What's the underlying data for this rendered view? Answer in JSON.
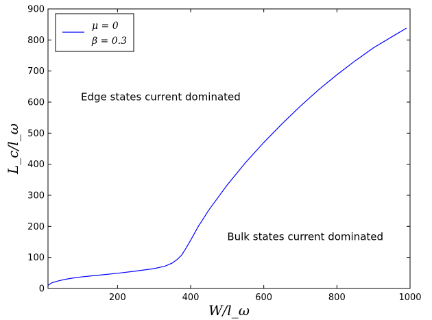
{
  "chart_data": {
    "type": "line",
    "xlabel": "W/l_ω",
    "ylabel": "L_c/l_ω",
    "xlim": [
      10,
      1000
    ],
    "ylim": [
      0,
      900
    ],
    "x_ticks": [
      200,
      400,
      600,
      800,
      1000
    ],
    "y_ticks": [
      0,
      100,
      200,
      300,
      400,
      500,
      600,
      700,
      800,
      900
    ],
    "grid": false,
    "legend_position": "top-left",
    "legend": [
      "μ = 0",
      "β = 0.3"
    ],
    "annotations": [
      {
        "text": "Edge states current dominated",
        "x": 100,
        "y": 605
      },
      {
        "text": "Bulk states current dominated",
        "x": 500,
        "y": 155
      }
    ],
    "series": [
      {
        "color": "#0000ff",
        "x": [
          10,
          20,
          40,
          60,
          80,
          100,
          150,
          200,
          250,
          300,
          330,
          350,
          365,
          375,
          385,
          400,
          420,
          450,
          500,
          550,
          600,
          650,
          700,
          750,
          800,
          850,
          900,
          950,
          990
        ],
        "y": [
          10,
          18,
          25,
          30,
          34,
          37,
          43,
          49,
          56,
          64,
          72,
          82,
          95,
          107,
          125,
          155,
          198,
          253,
          333,
          405,
          470,
          530,
          587,
          640,
          688,
          733,
          775,
          810,
          838
        ]
      }
    ]
  }
}
